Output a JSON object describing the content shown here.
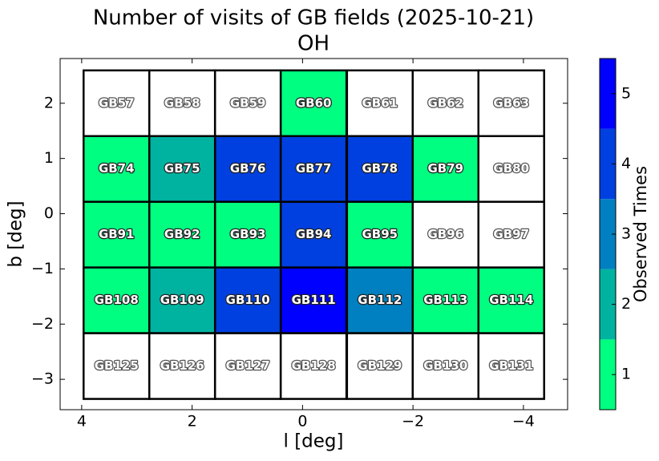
{
  "chart_data": {
    "type": "heatmap",
    "title": "Number of visits of GB fields (2025-10-21)",
    "subtitle": "OH",
    "x_label": "l [deg]",
    "y_label": "b [deg]",
    "xlim": [
      4.39,
      -4.8
    ],
    "ylim": [
      -3.55,
      2.81
    ],
    "xticks": [
      4,
      2,
      0,
      {
        "value": -2,
        "label": "−2"
      },
      {
        "value": -4,
        "label": "−4"
      }
    ],
    "yticks": [
      {
        "value": -3,
        "label": "−3"
      },
      {
        "value": -2,
        "label": "−2"
      },
      {
        "value": -1,
        "label": "−1"
      },
      0,
      1,
      2
    ],
    "cell_size": 1.19,
    "empty_color": "#ffffff",
    "fields": [
      {
        "label": "GB57",
        "l": 3.37,
        "b": 2.0,
        "value": 0
      },
      {
        "label": "GB58",
        "l": 2.18,
        "b": 2.0,
        "value": 0
      },
      {
        "label": "GB59",
        "l": 0.99,
        "b": 2.0,
        "value": 0
      },
      {
        "label": "GB60",
        "l": -0.2,
        "b": 2.0,
        "value": 1
      },
      {
        "label": "GB61",
        "l": -1.4,
        "b": 2.0,
        "value": 0
      },
      {
        "label": "GB62",
        "l": -2.59,
        "b": 2.0,
        "value": 0
      },
      {
        "label": "GB63",
        "l": -3.78,
        "b": 2.0,
        "value": 0
      },
      {
        "label": "GB74",
        "l": 3.37,
        "b": 0.81,
        "value": 1
      },
      {
        "label": "GB75",
        "l": 2.18,
        "b": 0.81,
        "value": 2
      },
      {
        "label": "GB76",
        "l": 0.99,
        "b": 0.81,
        "value": 4
      },
      {
        "label": "GB77",
        "l": -0.2,
        "b": 0.81,
        "value": 4
      },
      {
        "label": "GB78",
        "l": -1.4,
        "b": 0.81,
        "value": 4
      },
      {
        "label": "GB79",
        "l": -2.59,
        "b": 0.81,
        "value": 1
      },
      {
        "label": "GB80",
        "l": -3.78,
        "b": 0.81,
        "value": 0
      },
      {
        "label": "GB91",
        "l": 3.37,
        "b": -0.38,
        "value": 1
      },
      {
        "label": "GB92",
        "l": 2.18,
        "b": -0.38,
        "value": 1
      },
      {
        "label": "GB93",
        "l": 0.99,
        "b": -0.38,
        "value": 1
      },
      {
        "label": "GB94",
        "l": -0.2,
        "b": -0.38,
        "value": 4
      },
      {
        "label": "GB95",
        "l": -1.4,
        "b": -0.38,
        "value": 1
      },
      {
        "label": "GB96",
        "l": -2.59,
        "b": -0.38,
        "value": 0
      },
      {
        "label": "GB97",
        "l": -3.78,
        "b": -0.38,
        "value": 0
      },
      {
        "label": "GB108",
        "l": 3.37,
        "b": -1.57,
        "value": 1
      },
      {
        "label": "GB109",
        "l": 2.18,
        "b": -1.57,
        "value": 2
      },
      {
        "label": "GB110",
        "l": 0.99,
        "b": -1.57,
        "value": 4
      },
      {
        "label": "GB111",
        "l": -0.2,
        "b": -1.57,
        "value": 5
      },
      {
        "label": "GB112",
        "l": -1.4,
        "b": -1.57,
        "value": 3
      },
      {
        "label": "GB113",
        "l": -2.59,
        "b": -1.57,
        "value": 1
      },
      {
        "label": "GB114",
        "l": -3.78,
        "b": -1.57,
        "value": 1
      },
      {
        "label": "GB125",
        "l": 3.37,
        "b": -2.76,
        "value": 0
      },
      {
        "label": "GB126",
        "l": 2.18,
        "b": -2.76,
        "value": 0
      },
      {
        "label": "GB127",
        "l": 0.99,
        "b": -2.76,
        "value": 0
      },
      {
        "label": "GB128",
        "l": -0.2,
        "b": -2.76,
        "value": 0
      },
      {
        "label": "GB129",
        "l": -1.4,
        "b": -2.76,
        "value": 0
      },
      {
        "label": "GB130",
        "l": -2.59,
        "b": -2.76,
        "value": 0
      },
      {
        "label": "GB131",
        "l": -3.78,
        "b": -2.76,
        "value": 0
      }
    ],
    "colorbar": {
      "label": "Observed Times",
      "lim": [
        0.5,
        5.5
      ],
      "ticks": [
        1,
        2,
        3,
        4,
        5
      ],
      "colors": [
        "#00ff80",
        "#00b3a0",
        "#0080c0",
        "#0040e0",
        "#0000ff"
      ]
    }
  }
}
